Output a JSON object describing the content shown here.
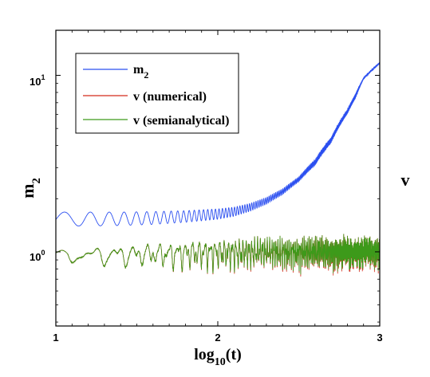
{
  "colors": {
    "m2": "#2b4ff0",
    "numerical": "#d42a1a",
    "semianalytical": "#3d9a1a"
  },
  "chart_data": {
    "type": "line",
    "x_scale": "linear",
    "y_scale": "log",
    "xlim": [
      1,
      3
    ],
    "ylim": [
      0.38,
      18
    ],
    "x_ticks": [
      1,
      2,
      3
    ],
    "x_tick_labels": [
      "1",
      "2",
      "3"
    ],
    "y_ticks": [
      1,
      10
    ],
    "y_tick_labels": {
      "base": "10",
      "exp0": "0",
      "exp1": "1"
    },
    "xlabel": {
      "main": "log",
      "sub": "10",
      "rest": "(t)"
    },
    "ylabel": {
      "main": "m",
      "sub": "2"
    },
    "y2label": "v",
    "legend_position": "upper-left",
    "series": [
      {
        "name": "m2",
        "legend": {
          "main": "m",
          "sub": "2"
        },
        "color": "#2b4ff0",
        "style": "fast oscillation band",
        "x": [
          1.0,
          1.2,
          1.4,
          1.6,
          1.8,
          2.0,
          2.1,
          2.2,
          2.3,
          2.4,
          2.5,
          2.6,
          2.7,
          2.8,
          2.85,
          2.9,
          3.0
        ],
        "y_upper": [
          1.68,
          1.68,
          1.68,
          1.69,
          1.71,
          1.75,
          1.79,
          1.88,
          2.03,
          2.27,
          2.65,
          3.32,
          4.45,
          6.4,
          7.85,
          9.7,
          11.8
        ],
        "y_lower": [
          1.4,
          1.4,
          1.41,
          1.43,
          1.47,
          1.53,
          1.59,
          1.7,
          1.86,
          2.11,
          2.5,
          3.1,
          4.15,
          6.05,
          7.4,
          9.5,
          11.7
        ]
      },
      {
        "name": "v (numerical)",
        "legend": {
          "main": "v (numerical)"
        },
        "color": "#d42a1a",
        "style": "noisy fluctuation around 1",
        "x": [
          1.0,
          1.5,
          2.0,
          2.3,
          2.6,
          3.0
        ],
        "y_center": [
          0.97,
          0.98,
          1.0,
          1.0,
          1.0,
          1.0
        ],
        "y_min": [
          0.79,
          0.76,
          0.73,
          0.72,
          0.72,
          0.71
        ],
        "y_max": [
          1.02,
          1.12,
          1.22,
          1.25,
          1.28,
          1.28
        ]
      },
      {
        "name": "v (semianalytical)",
        "legend": {
          "main": "v (semianalytical)"
        },
        "color": "#3d9a1a",
        "style": "noisy fluctuation around 1",
        "x": [
          1.0,
          1.5,
          2.0,
          2.3,
          2.6,
          3.0
        ],
        "y_center": [
          0.97,
          0.98,
          1.0,
          1.0,
          1.0,
          1.0
        ],
        "y_min": [
          0.79,
          0.76,
          0.74,
          0.74,
          0.74,
          0.74
        ],
        "y_max": [
          1.02,
          1.12,
          1.22,
          1.25,
          1.28,
          1.28
        ]
      }
    ]
  }
}
